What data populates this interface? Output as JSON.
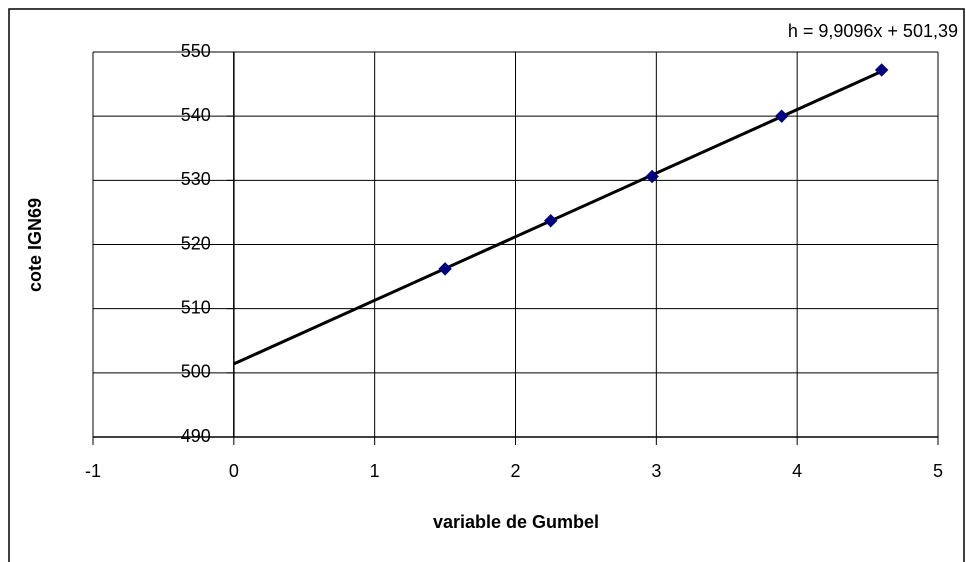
{
  "chart_data": {
    "type": "scatter",
    "x_label": "variable de Gumbel",
    "y_label": "cote IGN69",
    "series": [
      {
        "name": "cote",
        "color": "#000080",
        "x": [
          1.5,
          2.25,
          2.97,
          3.89,
          4.6
        ],
        "values": [
          516.2,
          523.7,
          530.6,
          540.0,
          547.2
        ]
      }
    ],
    "trendline": {
      "label": "h = 9,9096x + 501,39",
      "slope": 9.9096,
      "intercept": 501.39,
      "xrange": [
        0,
        4.6
      ],
      "color": "#000000"
    },
    "xlim": [
      -1,
      5
    ],
    "xticks": [
      -1,
      0,
      1,
      2,
      3,
      4,
      5
    ],
    "ylim": [
      490,
      550
    ],
    "yticks": [
      490,
      500,
      510,
      520,
      530,
      540,
      550
    ],
    "grid": true
  }
}
